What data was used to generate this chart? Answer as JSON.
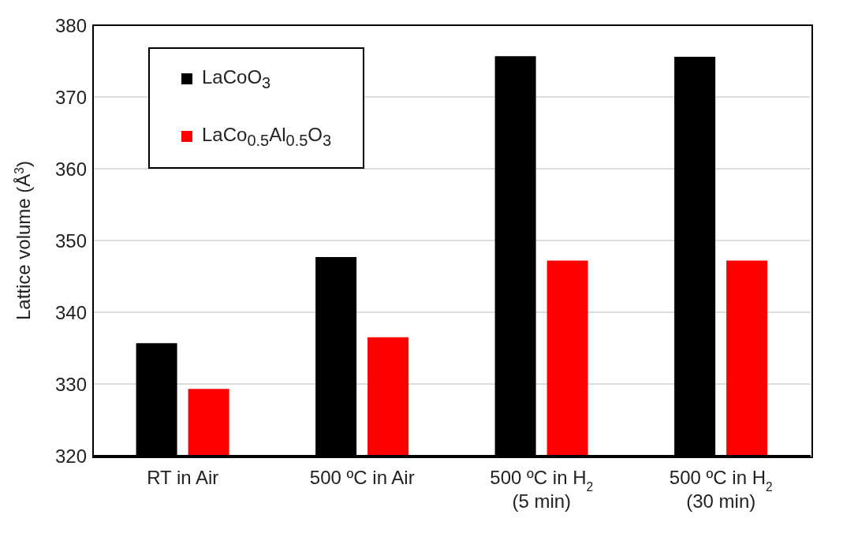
{
  "chart_data": {
    "type": "bar",
    "ylabel": "Lattice volume (Å$^{3}$)",
    "categories": [
      "RT in Air",
      "500 ºC in Air",
      "500 ºC in H$_{2}$\n(5 min)",
      "500 ºC in H$_{2}$\n(30 min)"
    ],
    "series": [
      {
        "name": "LaCoO$_{3}$",
        "color": "#000000",
        "values": [
          335.7,
          347.7,
          375.7,
          375.6
        ]
      },
      {
        "name": "LaCo$_{0.5}$Al$_{0.5}$O$_{3}$",
        "color": "#ff0000",
        "values": [
          329.3,
          336.5,
          347.2,
          347.2
        ]
      }
    ],
    "ylim": [
      320,
      380
    ],
    "yticks": [
      320,
      330,
      340,
      350,
      360,
      370,
      380
    ],
    "grid": "y",
    "legend": "top left"
  }
}
